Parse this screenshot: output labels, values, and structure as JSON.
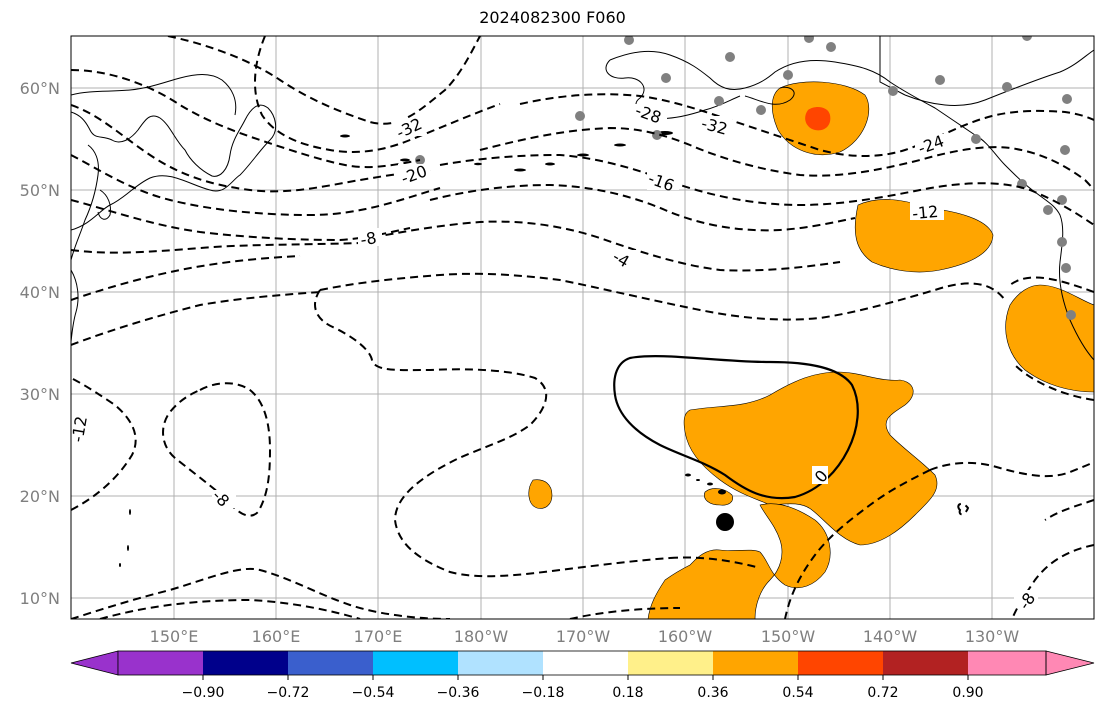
{
  "title": "2024082300 F060",
  "map": {
    "lat_labels": [
      "60°N",
      "50°N",
      "40°N",
      "30°N",
      "20°N",
      "10°N"
    ],
    "lon_labels": [
      "150°E",
      "160°E",
      "170°E",
      "180°W",
      "170°W",
      "160°W",
      "150°W",
      "140°W",
      "130°W"
    ],
    "contour_labels": [
      "-32",
      "-28",
      "-32",
      "-24",
      "-20",
      "-16",
      "-12",
      "-8",
      "-4",
      "0",
      "-8",
      "-12",
      "-8"
    ],
    "storm_marker": "filled black circle",
    "colors": {
      "fill_positive_1": "#ffa500",
      "fill_positive_2": "#ff4500",
      "station_dots": "#808080",
      "grid": "#b0b0b0"
    }
  },
  "colorbar": {
    "labels": [
      "−0.90",
      "−0.72",
      "−0.54",
      "−0.36",
      "−0.18",
      "0.18",
      "0.36",
      "0.54",
      "0.72",
      "0.90"
    ],
    "colors": [
      "#9932cc",
      "#00008b",
      "#3a5fcd",
      "#00bfff",
      "#b0e2ff",
      "#ffffff",
      "#fff08a",
      "#ffa500",
      "#ff4500",
      "#b22222",
      "#ff88b4"
    ]
  }
}
